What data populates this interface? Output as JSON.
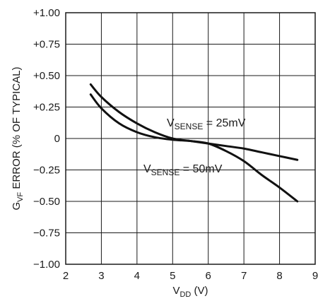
{
  "chart_data": {
    "type": "line",
    "xlabel": {
      "main": "V",
      "sub": "DD",
      "tail": " (V)"
    },
    "ylabel": {
      "main": "G",
      "sub": "VF",
      "tail": " ERROR (% OF TYPICAL)"
    },
    "xlim": [
      2,
      9
    ],
    "ylim": [
      -1.0,
      1.0
    ],
    "x_ticks": [
      2,
      3,
      4,
      5,
      6,
      7,
      8,
      9
    ],
    "x_tick_labels": [
      "2",
      "3",
      "4",
      "5",
      "6",
      "7",
      "8",
      "9"
    ],
    "y_ticks": [
      1.0,
      0.75,
      0.5,
      0.25,
      0,
      -0.25,
      -0.5,
      -0.75,
      -1.0
    ],
    "y_tick_labels": [
      "+1.00",
      "+0.75",
      "+0.50",
      "+0.25",
      "0",
      "−0.25",
      "−0.50",
      "−0.75",
      "−1.00"
    ],
    "grid": true,
    "series": [
      {
        "name": "VSENSE = 25mV",
        "label": {
          "main": "V",
          "sub": "SENSE",
          "tail": " = 25mV"
        },
        "x": [
          2.7,
          3.0,
          3.5,
          4.0,
          4.5,
          5.0,
          5.5,
          6.0,
          6.5,
          7.0,
          7.5,
          8.0,
          8.5
        ],
        "y": [
          0.43,
          0.33,
          0.21,
          0.12,
          0.05,
          0.0,
          -0.02,
          -0.04,
          -0.06,
          -0.08,
          -0.11,
          -0.14,
          -0.17
        ]
      },
      {
        "name": "VSENSE = 50mV",
        "label": {
          "main": "V",
          "sub": "SENSE",
          "tail": " = 50mV"
        },
        "x": [
          2.7,
          3.0,
          3.5,
          4.0,
          4.5,
          5.0,
          5.5,
          6.0,
          6.5,
          7.0,
          7.5,
          8.0,
          8.5
        ],
        "y": [
          0.35,
          0.24,
          0.12,
          0.05,
          0.01,
          -0.01,
          -0.02,
          -0.04,
          -0.1,
          -0.18,
          -0.29,
          -0.39,
          -0.5
        ]
      }
    ]
  }
}
